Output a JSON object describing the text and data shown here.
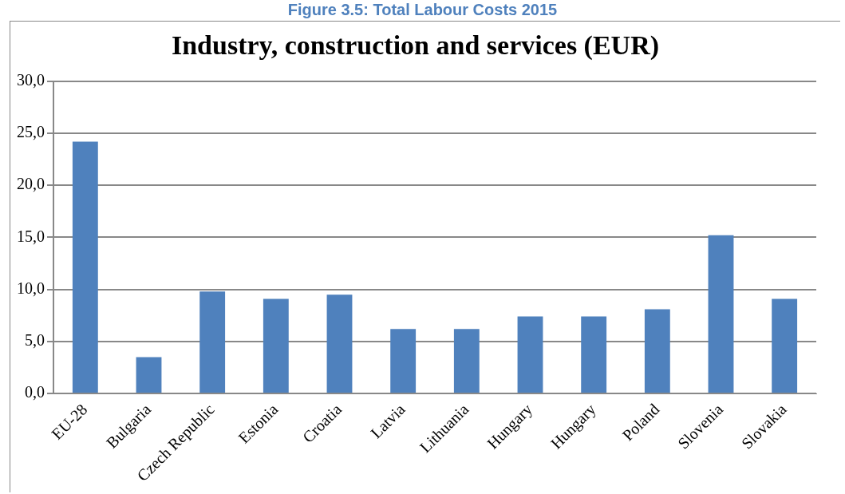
{
  "chart_data": {
    "type": "bar",
    "title": "Figure 3.5: Total Labour Costs 2015",
    "subtitle": "Industry, construction and services (EUR)",
    "categories": [
      "EU-28",
      "Bulgaria",
      "Czech Republic",
      "Estonia",
      "Croatia",
      "Latvia",
      "Lithuania",
      "Hungary",
      "Hungary",
      "Poland",
      "Slovenia",
      "Slovakia"
    ],
    "values": [
      24.2,
      3.5,
      9.8,
      9.1,
      9.5,
      6.2,
      6.2,
      7.4,
      7.4,
      8.1,
      15.2,
      9.1
    ],
    "color": "#4f81bd",
    "ylim": [
      0,
      30
    ],
    "yticks": [
      {
        "value": 0,
        "label": "0,0"
      },
      {
        "value": 5,
        "label": "5,0"
      },
      {
        "value": 10,
        "label": "10,0"
      },
      {
        "value": 15,
        "label": "15,0"
      },
      {
        "value": 20,
        "label": "20,0"
      },
      {
        "value": 25,
        "label": "25,0"
      },
      {
        "value": 30,
        "label": "30,0"
      }
    ],
    "grid": "y",
    "legend": false
  }
}
